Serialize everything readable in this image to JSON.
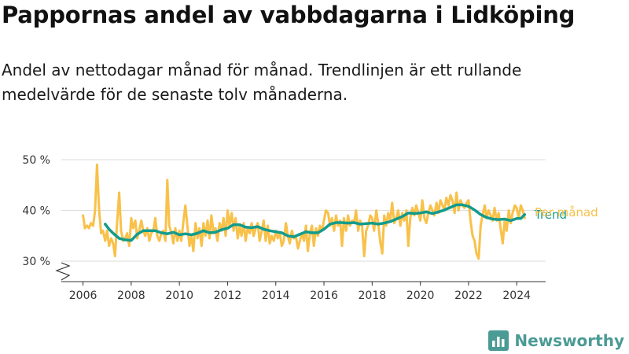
{
  "title": "Pappornas andel av vabbdagarna i Lidköping",
  "subtitle": "Andel av nettodagar månad för månad. Trendlinjen är ett rullande medelvärde för de senaste tolv månaderna.",
  "brand": {
    "name": "Newsworthy",
    "icon": "newsworthy-logo-icon",
    "color": "#4b9b95"
  },
  "chart_data": {
    "type": "line",
    "y_axis": {
      "ticks": [
        30,
        40,
        50
      ],
      "tick_labels": [
        "30 %",
        "40 %",
        "50 %"
      ],
      "range": [
        30,
        50
      ],
      "broken_axis": true
    },
    "x_axis": {
      "ticks": [
        2006,
        2008,
        2010,
        2012,
        2014,
        2016,
        2018,
        2020,
        2022,
        2024
      ],
      "tick_labels": [
        "2006",
        "2008",
        "2010",
        "2012",
        "2014",
        "2016",
        "2018",
        "2020",
        "2022",
        "2024"
      ],
      "range": [
        2005.1,
        2025.2
      ]
    },
    "grid": "horizontal",
    "legend": "direct labels at right end of lines",
    "series": [
      {
        "name": "Per månad",
        "color": "#f8c14a",
        "points": [
          [
            2006.0,
            39.0
          ],
          [
            2006.08,
            36.5
          ],
          [
            2006.17,
            37.0
          ],
          [
            2006.25,
            36.5
          ],
          [
            2006.33,
            37.5
          ],
          [
            2006.42,
            37.0
          ],
          [
            2006.5,
            40.0
          ],
          [
            2006.58,
            49.0
          ],
          [
            2006.67,
            40.0
          ],
          [
            2006.75,
            35.5
          ],
          [
            2006.83,
            36.0
          ],
          [
            2006.92,
            34.0
          ],
          [
            2007.0,
            36.0
          ],
          [
            2007.08,
            33.0
          ],
          [
            2007.17,
            34.5
          ],
          [
            2007.25,
            33.5
          ],
          [
            2007.33,
            31.0
          ],
          [
            2007.42,
            38.0
          ],
          [
            2007.5,
            43.5
          ],
          [
            2007.58,
            36.0
          ],
          [
            2007.67,
            34.0
          ],
          [
            2007.75,
            34.5
          ],
          [
            2007.83,
            35.5
          ],
          [
            2007.92,
            33.0
          ],
          [
            2008.0,
            38.5
          ],
          [
            2008.08,
            36.5
          ],
          [
            2008.17,
            38.0
          ],
          [
            2008.25,
            34.5
          ],
          [
            2008.33,
            36.0
          ],
          [
            2008.42,
            38.0
          ],
          [
            2008.5,
            36.0
          ],
          [
            2008.58,
            35.0
          ],
          [
            2008.67,
            36.5
          ],
          [
            2008.75,
            34.0
          ],
          [
            2008.83,
            35.5
          ],
          [
            2008.92,
            36.0
          ],
          [
            2009.0,
            38.5
          ],
          [
            2009.08,
            35.0
          ],
          [
            2009.17,
            34.0
          ],
          [
            2009.25,
            35.5
          ],
          [
            2009.33,
            36.0
          ],
          [
            2009.42,
            34.0
          ],
          [
            2009.5,
            46.0
          ],
          [
            2009.58,
            37.0
          ],
          [
            2009.67,
            35.5
          ],
          [
            2009.75,
            33.5
          ],
          [
            2009.83,
            36.5
          ],
          [
            2009.92,
            34.0
          ],
          [
            2010.0,
            36.0
          ],
          [
            2010.08,
            34.0
          ],
          [
            2010.17,
            38.0
          ],
          [
            2010.25,
            41.0
          ],
          [
            2010.33,
            37.0
          ],
          [
            2010.42,
            33.0
          ],
          [
            2010.5,
            35.0
          ],
          [
            2010.58,
            32.0
          ],
          [
            2010.67,
            37.5
          ],
          [
            2010.75,
            34.5
          ],
          [
            2010.83,
            36.5
          ],
          [
            2010.92,
            33.0
          ],
          [
            2011.0,
            37.5
          ],
          [
            2011.08,
            35.0
          ],
          [
            2011.17,
            38.0
          ],
          [
            2011.25,
            34.5
          ],
          [
            2011.33,
            39.0
          ],
          [
            2011.42,
            35.5
          ],
          [
            2011.5,
            36.5
          ],
          [
            2011.58,
            34.0
          ],
          [
            2011.67,
            37.5
          ],
          [
            2011.75,
            36.0
          ],
          [
            2011.83,
            38.5
          ],
          [
            2011.92,
            35.0
          ],
          [
            2012.0,
            40.0
          ],
          [
            2012.08,
            37.0
          ],
          [
            2012.17,
            39.5
          ],
          [
            2012.25,
            36.0
          ],
          [
            2012.33,
            38.5
          ],
          [
            2012.42,
            34.5
          ],
          [
            2012.5,
            37.0
          ],
          [
            2012.58,
            35.0
          ],
          [
            2012.67,
            37.5
          ],
          [
            2012.75,
            34.0
          ],
          [
            2012.83,
            36.5
          ],
          [
            2012.92,
            35.5
          ],
          [
            2013.0,
            37.5
          ],
          [
            2013.08,
            35.0
          ],
          [
            2013.17,
            36.5
          ],
          [
            2013.25,
            37.5
          ],
          [
            2013.33,
            34.0
          ],
          [
            2013.42,
            36.0
          ],
          [
            2013.5,
            38.0
          ],
          [
            2013.58,
            34.0
          ],
          [
            2013.67,
            37.0
          ],
          [
            2013.75,
            33.5
          ],
          [
            2013.83,
            35.0
          ],
          [
            2013.92,
            34.0
          ],
          [
            2014.0,
            36.0
          ],
          [
            2014.08,
            34.5
          ],
          [
            2014.17,
            35.5
          ],
          [
            2014.25,
            33.0
          ],
          [
            2014.33,
            34.0
          ],
          [
            2014.42,
            37.5
          ],
          [
            2014.5,
            35.0
          ],
          [
            2014.58,
            33.5
          ],
          [
            2014.67,
            36.0
          ],
          [
            2014.75,
            34.5
          ],
          [
            2014.83,
            35.0
          ],
          [
            2014.92,
            32.5
          ],
          [
            2015.0,
            34.0
          ],
          [
            2015.08,
            35.5
          ],
          [
            2015.17,
            34.0
          ],
          [
            2015.25,
            37.0
          ],
          [
            2015.33,
            32.0
          ],
          [
            2015.42,
            35.5
          ],
          [
            2015.5,
            37.0
          ],
          [
            2015.58,
            33.0
          ],
          [
            2015.67,
            36.5
          ],
          [
            2015.75,
            35.0
          ],
          [
            2015.83,
            37.0
          ],
          [
            2015.92,
            36.0
          ],
          [
            2016.0,
            38.0
          ],
          [
            2016.08,
            40.0
          ],
          [
            2016.17,
            39.5
          ],
          [
            2016.25,
            37.0
          ],
          [
            2016.33,
            38.5
          ],
          [
            2016.42,
            36.0
          ],
          [
            2016.5,
            39.0
          ],
          [
            2016.58,
            37.0
          ],
          [
            2016.67,
            38.0
          ],
          [
            2016.75,
            33.0
          ],
          [
            2016.83,
            38.5
          ],
          [
            2016.92,
            36.0
          ],
          [
            2017.0,
            39.0
          ],
          [
            2017.08,
            37.0
          ],
          [
            2017.17,
            38.0
          ],
          [
            2017.25,
            37.5
          ],
          [
            2017.33,
            40.0
          ],
          [
            2017.42,
            36.0
          ],
          [
            2017.5,
            38.0
          ],
          [
            2017.58,
            37.0
          ],
          [
            2017.67,
            31.0
          ],
          [
            2017.75,
            36.0
          ],
          [
            2017.83,
            37.0
          ],
          [
            2017.92,
            39.0
          ],
          [
            2018.0,
            38.5
          ],
          [
            2018.08,
            36.0
          ],
          [
            2018.17,
            40.0
          ],
          [
            2018.25,
            37.5
          ],
          [
            2018.33,
            34.0
          ],
          [
            2018.42,
            31.5
          ],
          [
            2018.5,
            39.0
          ],
          [
            2018.58,
            37.0
          ],
          [
            2018.67,
            39.5
          ],
          [
            2018.75,
            38.0
          ],
          [
            2018.83,
            41.5
          ],
          [
            2018.92,
            37.5
          ],
          [
            2019.0,
            38.5
          ],
          [
            2019.08,
            40.0
          ],
          [
            2019.17,
            37.0
          ],
          [
            2019.25,
            39.5
          ],
          [
            2019.33,
            38.0
          ],
          [
            2019.42,
            40.0
          ],
          [
            2019.5,
            33.0
          ],
          [
            2019.58,
            38.5
          ],
          [
            2019.67,
            40.5
          ],
          [
            2019.75,
            39.0
          ],
          [
            2019.83,
            41.0
          ],
          [
            2019.92,
            39.5
          ],
          [
            2020.0,
            38.0
          ],
          [
            2020.08,
            42.0
          ],
          [
            2020.17,
            38.5
          ],
          [
            2020.25,
            37.5
          ],
          [
            2020.33,
            39.5
          ],
          [
            2020.42,
            41.0
          ],
          [
            2020.5,
            40.0
          ],
          [
            2020.58,
            39.0
          ],
          [
            2020.67,
            41.5
          ],
          [
            2020.75,
            39.5
          ],
          [
            2020.83,
            42.0
          ],
          [
            2020.92,
            41.0
          ],
          [
            2021.0,
            40.0
          ],
          [
            2021.08,
            42.5
          ],
          [
            2021.17,
            41.0
          ],
          [
            2021.25,
            43.0
          ],
          [
            2021.33,
            42.0
          ],
          [
            2021.42,
            39.5
          ],
          [
            2021.5,
            43.5
          ],
          [
            2021.58,
            40.0
          ],
          [
            2021.67,
            42.0
          ],
          [
            2021.75,
            41.0
          ],
          [
            2021.83,
            40.5
          ],
          [
            2021.92,
            41.5
          ],
          [
            2022.0,
            42.0
          ],
          [
            2022.08,
            38.0
          ],
          [
            2022.17,
            35.0
          ],
          [
            2022.25,
            34.0
          ],
          [
            2022.33,
            31.5
          ],
          [
            2022.42,
            30.5
          ],
          [
            2022.5,
            37.0
          ],
          [
            2022.58,
            39.0
          ],
          [
            2022.67,
            41.0
          ],
          [
            2022.75,
            38.5
          ],
          [
            2022.83,
            40.0
          ],
          [
            2022.92,
            39.0
          ],
          [
            2023.0,
            38.0
          ],
          [
            2023.08,
            40.5
          ],
          [
            2023.17,
            38.0
          ],
          [
            2023.25,
            39.5
          ],
          [
            2023.33,
            36.5
          ],
          [
            2023.42,
            33.5
          ],
          [
            2023.5,
            38.0
          ],
          [
            2023.58,
            36.0
          ],
          [
            2023.67,
            40.0
          ],
          [
            2023.75,
            37.5
          ],
          [
            2023.83,
            39.5
          ],
          [
            2023.92,
            41.0
          ],
          [
            2024.0,
            40.5
          ],
          [
            2024.08,
            38.5
          ],
          [
            2024.17,
            41.0
          ],
          [
            2024.25,
            40.0
          ],
          [
            2024.33,
            38.5
          ]
        ]
      },
      {
        "name": "Trend",
        "color": "#139b8c",
        "points": [
          [
            2006.92,
            37.3
          ],
          [
            2007.08,
            36.3
          ],
          [
            2007.25,
            35.5
          ],
          [
            2007.5,
            34.5
          ],
          [
            2007.75,
            34.2
          ],
          [
            2008.0,
            34.1
          ],
          [
            2008.25,
            35.3
          ],
          [
            2008.5,
            36.0
          ],
          [
            2008.75,
            36.0
          ],
          [
            2009.0,
            36.0
          ],
          [
            2009.25,
            35.6
          ],
          [
            2009.5,
            35.4
          ],
          [
            2009.75,
            35.7
          ],
          [
            2010.0,
            35.2
          ],
          [
            2010.25,
            35.4
          ],
          [
            2010.5,
            35.2
          ],
          [
            2010.75,
            35.5
          ],
          [
            2011.0,
            36.0
          ],
          [
            2011.25,
            35.6
          ],
          [
            2011.5,
            35.7
          ],
          [
            2011.75,
            36.2
          ],
          [
            2012.0,
            36.5
          ],
          [
            2012.25,
            37.2
          ],
          [
            2012.5,
            37.2
          ],
          [
            2012.75,
            36.7
          ],
          [
            2013.0,
            36.6
          ],
          [
            2013.25,
            36.8
          ],
          [
            2013.5,
            36.3
          ],
          [
            2013.75,
            36.0
          ],
          [
            2014.0,
            35.8
          ],
          [
            2014.25,
            35.6
          ],
          [
            2014.5,
            35.0
          ],
          [
            2014.75,
            34.8
          ],
          [
            2015.0,
            35.3
          ],
          [
            2015.25,
            35.8
          ],
          [
            2015.5,
            35.6
          ],
          [
            2015.75,
            35.6
          ],
          [
            2016.0,
            36.3
          ],
          [
            2016.25,
            37.3
          ],
          [
            2016.5,
            37.6
          ],
          [
            2016.75,
            37.6
          ],
          [
            2017.0,
            37.5
          ],
          [
            2017.25,
            37.6
          ],
          [
            2017.5,
            37.3
          ],
          [
            2017.75,
            37.4
          ],
          [
            2018.0,
            37.5
          ],
          [
            2018.25,
            37.3
          ],
          [
            2018.5,
            37.5
          ],
          [
            2018.75,
            37.8
          ],
          [
            2019.0,
            38.3
          ],
          [
            2019.25,
            38.8
          ],
          [
            2019.5,
            39.5
          ],
          [
            2019.75,
            39.4
          ],
          [
            2020.0,
            39.5
          ],
          [
            2020.25,
            39.7
          ],
          [
            2020.5,
            39.4
          ],
          [
            2020.75,
            39.7
          ],
          [
            2021.0,
            40.1
          ],
          [
            2021.25,
            40.6
          ],
          [
            2021.5,
            41.1
          ],
          [
            2021.75,
            41.1
          ],
          [
            2022.0,
            40.8
          ],
          [
            2022.25,
            40.1
          ],
          [
            2022.5,
            39.2
          ],
          [
            2022.75,
            38.6
          ],
          [
            2023.0,
            38.3
          ],
          [
            2023.25,
            38.2
          ],
          [
            2023.5,
            38.3
          ],
          [
            2023.75,
            38.0
          ],
          [
            2024.0,
            38.4
          ],
          [
            2024.17,
            38.4
          ],
          [
            2024.33,
            39.2
          ]
        ]
      }
    ]
  }
}
